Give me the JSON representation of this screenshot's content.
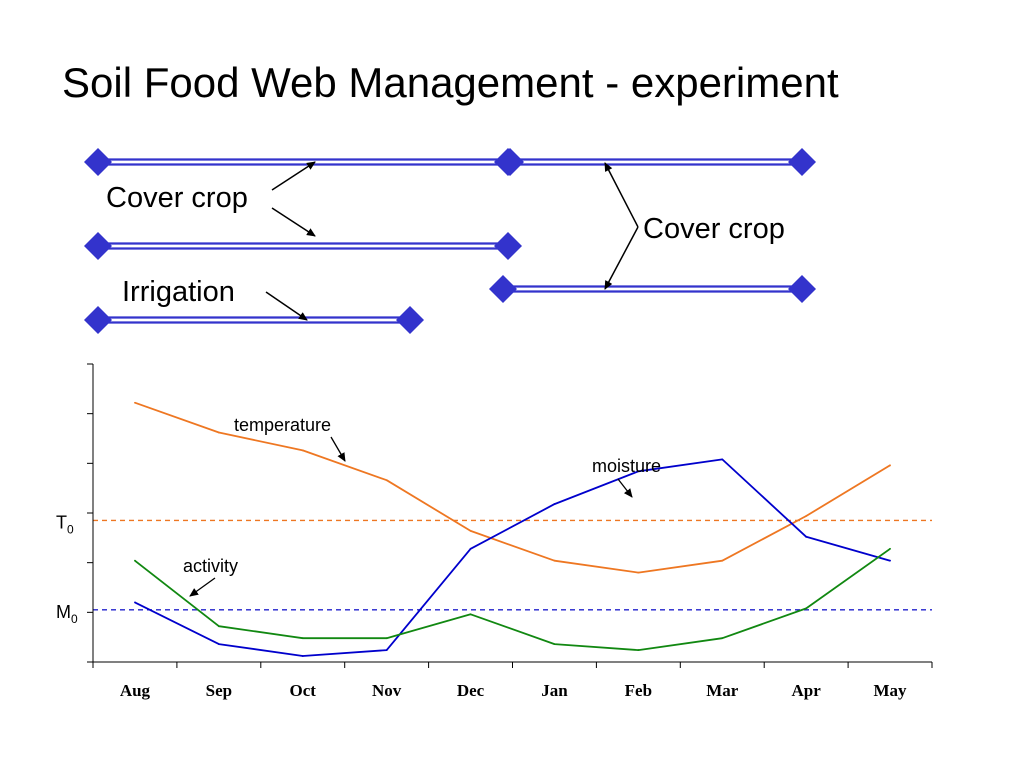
{
  "title": "Soil Food Web Management - experiment",
  "timeline": {
    "bar_color": "#3333cc",
    "labels": {
      "cover_crop_left": "Cover crop",
      "cover_crop_right": "Cover crop",
      "irrigation": "Irrigation"
    }
  },
  "chart_data": {
    "type": "line",
    "categories": [
      "Aug",
      "Sep",
      "Oct",
      "Nov",
      "Dec",
      "Jan",
      "Feb",
      "Mar",
      "Apr",
      "May"
    ],
    "ylim": [
      0,
      100
    ],
    "series": [
      {
        "name": "temperature",
        "color": "#ee7722",
        "values": [
          87,
          77,
          71,
          61,
          44,
          34,
          30,
          34,
          49,
          66
        ]
      },
      {
        "name": "moisture",
        "color": "#0000cc",
        "values": [
          20,
          6,
          2,
          4,
          38,
          53,
          64,
          68,
          42,
          34
        ]
      },
      {
        "name": "activity",
        "color": "#118811",
        "values": [
          34,
          12,
          8,
          8,
          16,
          6,
          4,
          8,
          18,
          38
        ]
      }
    ],
    "reference_lines": [
      {
        "label": "T",
        "subscript": "0",
        "value": 47.5,
        "color": "#ee7722"
      },
      {
        "label": "M",
        "subscript": "0",
        "value": 17.5,
        "color": "#2222cc"
      }
    ],
    "grid": false
  }
}
